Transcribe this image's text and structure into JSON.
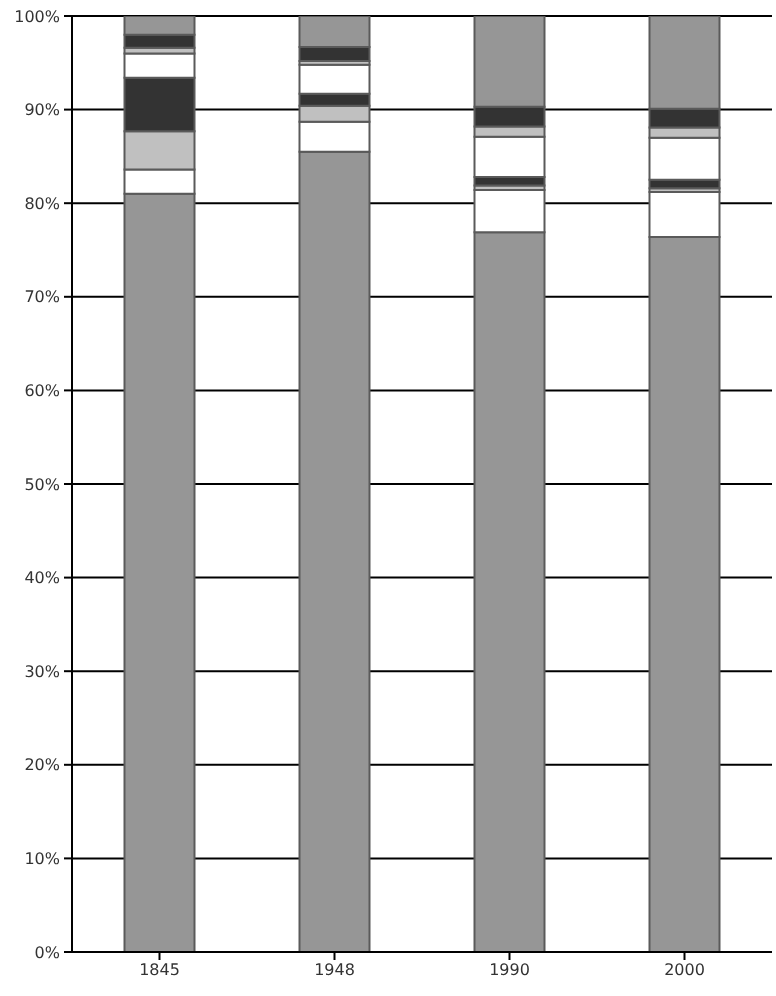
{
  "chart_data": {
    "type": "bar",
    "stacked": true,
    "categories": [
      "1845",
      "1948",
      "1990",
      "2000"
    ],
    "series": [
      {
        "color": "#969696",
        "values": [
          81.0,
          85.5,
          76.9,
          76.4
        ]
      },
      {
        "color": "#ffffff",
        "values": [
          2.6,
          3.2,
          4.5,
          4.8
        ]
      },
      {
        "color": "#c0c0c0",
        "values": [
          4.1,
          1.7,
          0.5,
          0.4
        ]
      },
      {
        "color": "#333333",
        "values": [
          5.7,
          1.3,
          0.9,
          0.9
        ]
      },
      {
        "color": "#ffffff",
        "values": [
          2.6,
          3.1,
          4.3,
          4.5
        ]
      },
      {
        "color": "#c0c0c0",
        "values": [
          0.6,
          0.4,
          1.1,
          1.1
        ]
      },
      {
        "color": "#333333",
        "values": [
          1.4,
          1.5,
          2.1,
          2.0
        ]
      },
      {
        "color": "#969696",
        "values": [
          2.0,
          3.3,
          9.7,
          9.9
        ]
      }
    ],
    "ylim": [
      0,
      100
    ],
    "yticks": [
      {
        "value": 0,
        "label": "0%"
      },
      {
        "value": 10,
        "label": "10%"
      },
      {
        "value": 20,
        "label": "20%"
      },
      {
        "value": 30,
        "label": "30%"
      },
      {
        "value": 40,
        "label": "40%"
      },
      {
        "value": 50,
        "label": "50%"
      },
      {
        "value": 60,
        "label": "60%"
      },
      {
        "value": 70,
        "label": "70%"
      },
      {
        "value": 80,
        "label": "80%"
      },
      {
        "value": 90,
        "label": "90%"
      },
      {
        "value": 100,
        "label": "100%"
      }
    ],
    "grid": "y"
  }
}
